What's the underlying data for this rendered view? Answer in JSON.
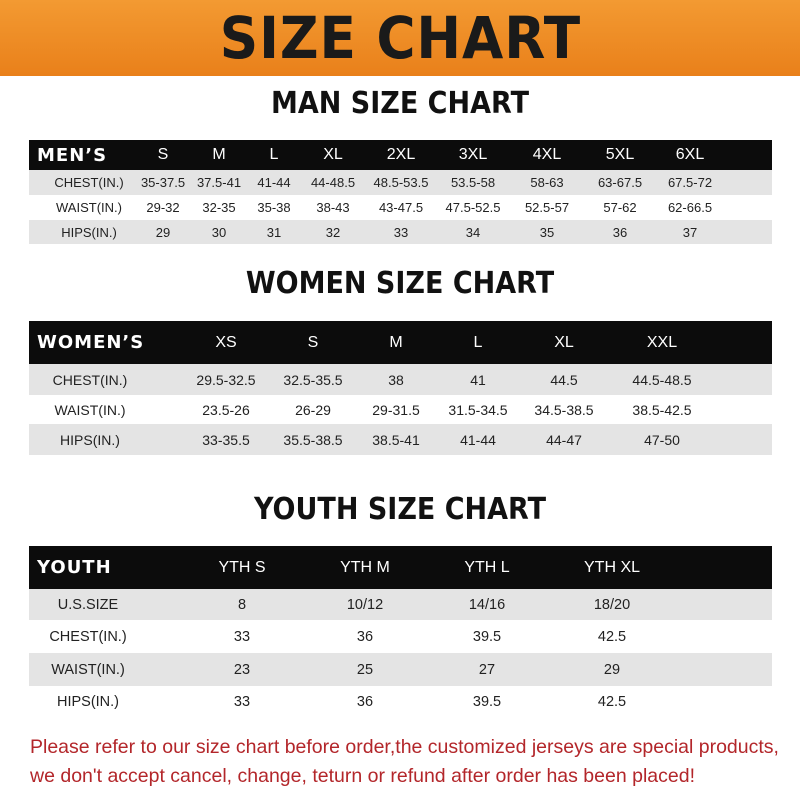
{
  "banner": "SIZE CHART",
  "colors": {
    "banner": "#ee8a24",
    "header": "#0c0c0c",
    "stripe": "#e4e4e4",
    "notice": "#b3262a"
  },
  "tables": [
    {
      "title": "MAN SIZE CHART",
      "header": [
        "MEN’S",
        "S",
        "M",
        "L",
        "XL",
        "2XL",
        "3XL",
        "4XL",
        "5XL",
        "6XL"
      ],
      "rows": [
        [
          "CHEST(IN.)",
          "35-37.5",
          "37.5-41",
          "41-44",
          "44-48.5",
          "48.5-53.5",
          "53.5-58",
          "58-63",
          "63-67.5",
          "67.5-72"
        ],
        [
          "WAIST(IN.)",
          "29-32",
          "32-35",
          "35-38",
          "38-43",
          "43-47.5",
          "47.5-52.5",
          "52.5-57",
          "57-62",
          "62-66.5"
        ],
        [
          "HIPS(IN.)",
          "29",
          "30",
          "31",
          "32",
          "33",
          "34",
          "35",
          "36",
          "37"
        ]
      ]
    },
    {
      "title": "WOMEN SIZE CHART",
      "header": [
        "WOMEN’S",
        "XS",
        "S",
        "M",
        "L",
        "XL",
        "XXL"
      ],
      "rows": [
        [
          "CHEST(IN.)",
          "29.5-32.5",
          "32.5-35.5",
          "38",
          "41",
          "44.5",
          "44.5-48.5"
        ],
        [
          "WAIST(IN.)",
          "23.5-26",
          "26-29",
          "29-31.5",
          "31.5-34.5",
          "34.5-38.5",
          "38.5-42.5"
        ],
        [
          "HIPS(IN.)",
          "33-35.5",
          "35.5-38.5",
          "38.5-41",
          "41-44",
          "44-47",
          "47-50"
        ]
      ]
    },
    {
      "title": "YOUTH SIZE CHART",
      "header": [
        "YOUTH",
        "YTH S",
        "YTH M",
        "YTH L",
        "YTH XL"
      ],
      "rows": [
        [
          "U.S.SIZE",
          "8",
          "10/12",
          "14/16",
          "18/20"
        ],
        [
          "CHEST(IN.)",
          "33",
          "36",
          "39.5",
          "42.5"
        ],
        [
          "WAIST(IN.)",
          "23",
          "25",
          "27",
          "29"
        ],
        [
          "HIPS(IN.)",
          "33",
          "36",
          "39.5",
          "42.5"
        ]
      ]
    }
  ],
  "notice": [
    "Please refer to our size chart before order,the customized jerseys are special products,",
    "we don't accept cancel, change, teturn or refund after order has been placed!"
  ]
}
